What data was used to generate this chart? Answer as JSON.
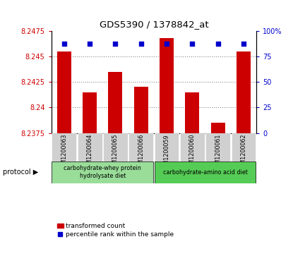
{
  "title": "GDS5390 / 1378842_at",
  "samples": [
    "GSM1200063",
    "GSM1200064",
    "GSM1200065",
    "GSM1200066",
    "GSM1200059",
    "GSM1200060",
    "GSM1200061",
    "GSM1200062"
  ],
  "bar_values": [
    8.2455,
    8.2415,
    8.2435,
    8.242,
    8.2468,
    8.2415,
    8.2385,
    8.2455
  ],
  "percentile_values": [
    87,
    87,
    87,
    87,
    87,
    87,
    87,
    87
  ],
  "ylim_left": [
    8.2375,
    8.2475
  ],
  "ylim_right": [
    0,
    100
  ],
  "yticks_left": [
    8.2375,
    8.24,
    8.2425,
    8.245,
    8.2475
  ],
  "yticks_right": [
    0,
    25,
    50,
    75,
    100
  ],
  "bar_color": "#cc0000",
  "percentile_color": "#0000cc",
  "bar_width": 0.55,
  "group1_label": "carbohydrate-whey protein\nhydrolysate diet",
  "group2_label": "carbohydrate-amino acid diet",
  "group1_color": "#99dd99",
  "group2_color": "#55cc55",
  "group1_samples": [
    0,
    1,
    2,
    3
  ],
  "group2_samples": [
    4,
    5,
    6,
    7
  ],
  "legend_bar_label": "transformed count",
  "legend_pct_label": "percentile rank within the sample",
  "left_tick_color": "#cc0000",
  "right_tick_color": "#0000cc",
  "background_gray": "#d0d0d0",
  "dotted_line_color": "#888888",
  "n_samples": 8
}
